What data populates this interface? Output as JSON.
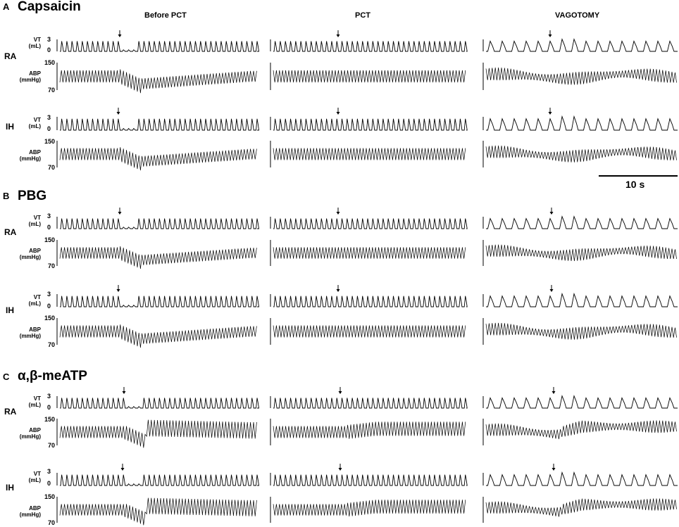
{
  "columns": [
    "Before PCT",
    "PCT",
    "VAGOTOMY"
  ],
  "panels": [
    {
      "letter": "A",
      "title": "Capsaicin",
      "groups": [
        {
          "label": "RA",
          "vt": {
            "label_main": "VT",
            "label_unit": "(mL)",
            "ticks": [
              "3",
              "0"
            ]
          },
          "abp": {
            "label_main": "ABP",
            "label_unit": "(mmHg)",
            "ticks": [
              "150",
              "70"
            ]
          }
        },
        {
          "label": "IH",
          "vt": {
            "label_main": "VT",
            "label_unit": "(mL)",
            "ticks": [
              "3",
              "0"
            ]
          },
          "abp": {
            "label_main": "ABP",
            "label_unit": "(mmHg)",
            "ticks": [
              "150",
              "70"
            ]
          }
        }
      ]
    },
    {
      "letter": "B",
      "title": "PBG",
      "groups": [
        {
          "label": "RA",
          "vt": {
            "label_main": "VT",
            "label_unit": "(mL)",
            "ticks": [
              "3",
              "0"
            ]
          },
          "abp": {
            "label_main": "ABP",
            "label_unit": "(mmHg)",
            "ticks": [
              "150",
              "70"
            ]
          }
        },
        {
          "label": "IH",
          "vt": {
            "label_main": "VT",
            "label_unit": "(mL)",
            "ticks": [
              "3",
              "0"
            ]
          },
          "abp": {
            "label_main": "ABP",
            "label_unit": "(mmHg)",
            "ticks": [
              "150",
              "70"
            ]
          }
        }
      ]
    },
    {
      "letter": "C",
      "title": "α,β-meATP",
      "groups": [
        {
          "label": "RA",
          "vt": {
            "label_main": "VT",
            "label_unit": "(mL)",
            "ticks": [
              "3",
              "0"
            ]
          },
          "abp": {
            "label_main": "ABP",
            "label_unit": "(mmHg)",
            "ticks": [
              "150",
              "70"
            ]
          }
        },
        {
          "label": "IH",
          "vt": {
            "label_main": "VT",
            "label_unit": "(mL)",
            "ticks": [
              "3",
              "0"
            ]
          },
          "abp": {
            "label_main": "ABP",
            "label_unit": "(mmHg)",
            "ticks": [
              "150",
              "70"
            ]
          }
        }
      ]
    }
  ],
  "scale_bar": {
    "label": "10 s"
  },
  "colors": {
    "trace": "#000000",
    "background": "#ffffff"
  }
}
